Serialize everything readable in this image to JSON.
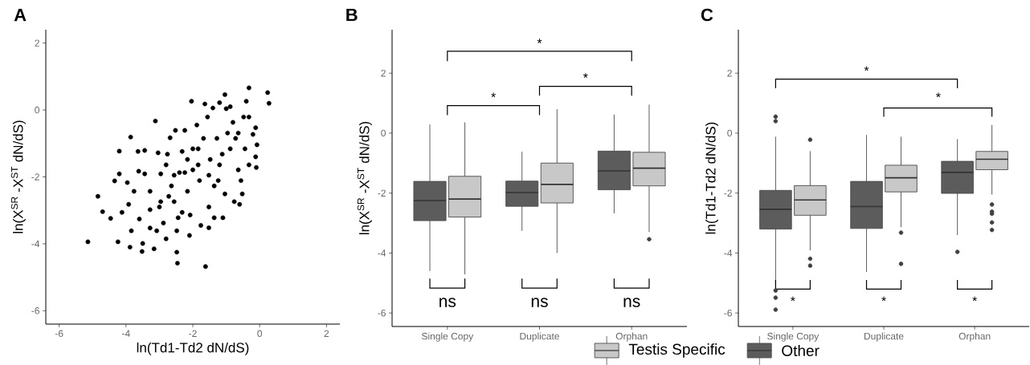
{
  "chart_data": [
    {
      "type": "scatter",
      "title": "A",
      "xlabel": "ln(Td1-Td2 dN/dS)",
      "ylabel": "ln(X$^{SR}$ -X$^{ST}$ dN/dS)",
      "color": "#000000",
      "xlim": [
        -6.4,
        2.4
      ],
      "ylim": [
        -6.4,
        2.4
      ],
      "xticks": [
        -6,
        -4,
        -2,
        0,
        2
      ],
      "yticks": [
        -6,
        -4,
        -2,
        0,
        2
      ],
      "x": [
        -5.14,
        -4.84,
        -4.7,
        -4.46,
        -4.34,
        -4.24,
        -4.2,
        -4.2,
        -4.12,
        -3.96,
        -3.88,
        -3.86,
        -3.92,
        -3.84,
        -3.76,
        -3.64,
        -3.62,
        -3.6,
        -3.5,
        -3.52,
        -3.44,
        -3.44,
        -3.28,
        -3.16,
        -3.12,
        -3.08,
        -3.04,
        -2.96,
        -3.0,
        -2.88,
        -2.8,
        -2.76,
        -2.68,
        -2.64,
        -2.56,
        -2.52,
        -2.48,
        -2.48,
        -2.46,
        -2.44,
        -2.4,
        -2.32,
        -2.24,
        -2.16,
        -2.1,
        -2.04,
        -2.08,
        -2.0,
        -1.88,
        -1.84,
        -1.8,
        -1.76,
        -1.64,
        -1.62,
        -1.56,
        -1.52,
        -1.52,
        -1.48,
        -1.4,
        -1.36,
        -1.28,
        -1.24,
        -1.2,
        -1.12,
        -1.1,
        -1.04,
        -1.04,
        -1.0,
        -0.88,
        -0.8,
        -0.76,
        -0.72,
        -0.64,
        -0.6,
        -0.56,
        -0.52,
        -0.48,
        -0.44,
        -0.4,
        -0.32,
        -0.32,
        -0.32,
        -0.2,
        -0.12,
        -0.12,
        -0.1,
        -0.08,
        0.24,
        0.28,
        -3.28,
        -2.96,
        -2.72,
        -2.56,
        -2.16,
        -2.0,
        -1.68,
        -1.52,
        -1.36,
        -1.2,
        -0.96,
        -2.32,
        -3.28,
        -2.8,
        -2.24,
        -1.84,
        -0.88,
        -0.64
      ],
      "values": [
        -3.94,
        -2.58,
        -3.04,
        -3.24,
        -2.12,
        -3.94,
        -1.23,
        -1.91,
        -3.06,
        -2.17,
        -4.1,
        -0.81,
        -2.82,
        -3.61,
        -2.43,
        -1.24,
        -1.83,
        -3.26,
        -3.99,
        -4.23,
        -1.21,
        -1.91,
        -2.43,
        -4.15,
        -0.33,
        -3.61,
        -1.28,
        -1.91,
        -2.9,
        -3.38,
        -3.85,
        -1.32,
        -0.83,
        -2.27,
        -2.74,
        -0.61,
        -3.61,
        -4.25,
        -4.58,
        -3.22,
        -1.87,
        -1.24,
        -0.61,
        -2.43,
        -3.75,
        0.26,
        -3.14,
        -1.79,
        -0.45,
        -1.16,
        -2.11,
        -3.45,
        0.18,
        -4.68,
        -0.21,
        -2.9,
        -3.52,
        -1.48,
        0.06,
        -3.22,
        -0.85,
        -2.11,
        0.22,
        -1.32,
        -3.22,
        0.46,
        -2.51,
        0.04,
        0.1,
        -0.37,
        -2.74,
        -0.85,
        -1.79,
        -2.82,
        -2.11,
        -2.51,
        -0.21,
        -1.16,
        0.26,
        0.66,
        -0.21,
        -1.64,
        -0.73,
        -0.53,
        -1.4,
        -1.72,
        -1.04,
        0.52,
        0.2,
        -3.53,
        -2.74,
        -2.58,
        -1.95,
        -1.48,
        -1.16,
        -0.85,
        -1.95,
        -2.27,
        -1.64,
        -0.69,
        -3.06,
        -2.98,
        -1.64,
        -1.87,
        -1.64,
        -1.16,
        -0.69
      ]
    },
    {
      "type": "box",
      "title": "B",
      "ylabel": "ln(X$^{SR}$ -X$^{ST}$ dN/dS)",
      "categories": [
        "Single Copy",
        "Duplicate",
        "Orphan"
      ],
      "ylim": [
        -6.45,
        3.45
      ],
      "yticks": [
        -6,
        -4,
        -2,
        0,
        2
      ],
      "series": [
        {
          "color": "#5c5c5c",
          "boxes": [
            {
              "low": -4.6,
              "q1": -2.92,
              "median": -2.25,
              "q3": -1.61,
              "high": 0.29
            },
            {
              "low": -3.26,
              "q1": -2.44,
              "median": -1.98,
              "q3": -1.6,
              "high": -0.62
            },
            {
              "low": -2.68,
              "q1": -1.89,
              "median": -1.26,
              "q3": -0.6,
              "high": 0.62
            }
          ]
        },
        {
          "color": "#c8c8c8",
          "boxes": [
            {
              "low": -4.71,
              "q1": -2.8,
              "median": -2.2,
              "q3": -1.44,
              "high": 0.36
            },
            {
              "low": -4.0,
              "q1": -2.33,
              "median": -1.71,
              "q3": -1.0,
              "high": 0.8
            },
            {
              "low": -3.3,
              "q1": -1.76,
              "median": -1.17,
              "q3": -0.64,
              "high": 0.95,
              "outliers": [
                -3.54
              ]
            }
          ]
        }
      ],
      "annotations": [
        "*",
        "*",
        "*",
        "ns",
        "ns",
        "ns"
      ]
    },
    {
      "type": "box",
      "title": "C",
      "ylabel": "ln(Td1-Td2 dN/dS)",
      "categories": [
        "Single Copy",
        "Duplicate",
        "Orphan"
      ],
      "ylim": [
        -6.45,
        3.45
      ],
      "yticks": [
        -6,
        -4,
        -2,
        0,
        2
      ],
      "legend": "bottom",
      "series": [
        {
          "name": "Other",
          "color": "#5c5c5c",
          "boxes": [
            {
              "low": -5.0,
              "q1": -3.2,
              "median": -2.54,
              "q3": -1.91,
              "high": -0.12,
              "outliers": [
                0.55,
                0.4,
                -5.25,
                -5.49,
                -5.89
              ]
            },
            {
              "low": -4.63,
              "q1": -3.18,
              "median": -2.45,
              "q3": -1.61,
              "high": -0.06
            },
            {
              "low": -3.4,
              "q1": -2.01,
              "median": -1.31,
              "q3": -0.94,
              "high": -0.2,
              "outliers": [
                -3.96
              ]
            }
          ]
        },
        {
          "name": "Testis Specific",
          "color": "#c8c8c8",
          "boxes": [
            {
              "low": -3.91,
              "q1": -2.74,
              "median": -2.23,
              "q3": -1.75,
              "high": -0.6,
              "outliers": [
                -0.22,
                -4.19,
                -4.42
              ]
            },
            {
              "low": -3.14,
              "q1": -1.96,
              "median": -1.49,
              "q3": -1.07,
              "high": -0.12,
              "outliers": [
                -3.32,
                -4.36
              ]
            },
            {
              "low": -2.05,
              "q1": -1.22,
              "median": -0.87,
              "q3": -0.61,
              "high": 0.27,
              "outliers": [
                -2.38,
                -2.62,
                -2.69,
                -2.98,
                -3.23
              ]
            }
          ]
        }
      ],
      "annotations": [
        "*",
        "*",
        "*",
        "*",
        "*"
      ]
    }
  ]
}
